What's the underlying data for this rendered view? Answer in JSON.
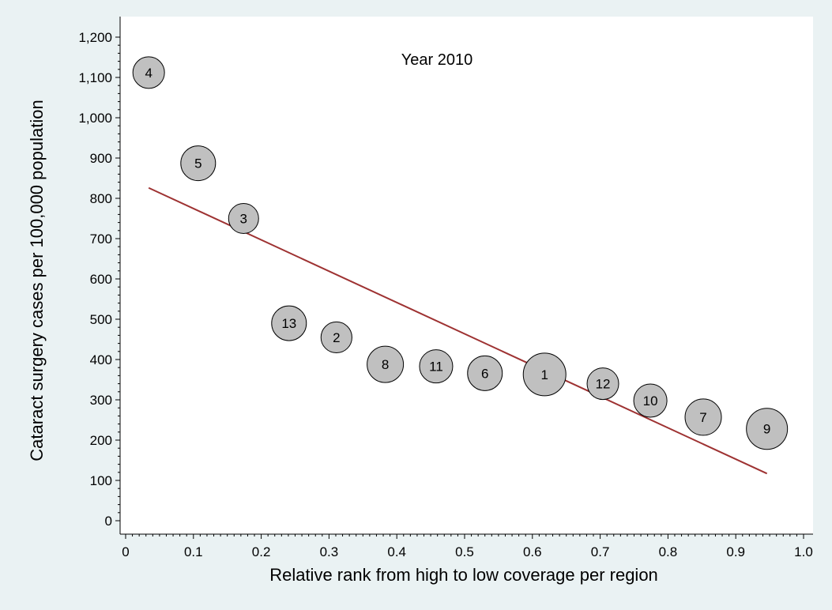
{
  "chart_data": {
    "type": "scatter",
    "annotation": "Year 2010",
    "xlabel": "Relative rank from high to low coverage per region",
    "ylabel": "Cataract surgery cases per 100,000 population",
    "xlim": [
      0,
      1.0
    ],
    "ylim": [
      0,
      1200
    ],
    "x_ticks": [
      0,
      0.1,
      0.2,
      0.3,
      0.4,
      0.5,
      0.6,
      0.7,
      0.8,
      0.9,
      1.0
    ],
    "x_tick_labels": [
      "0",
      "0.1",
      "0.2",
      "0.3",
      "0.4",
      "0.5",
      "0.6",
      "0.7",
      "0.8",
      "0.9",
      "1.0"
    ],
    "y_ticks": [
      0,
      100,
      200,
      300,
      400,
      500,
      600,
      700,
      800,
      900,
      1000,
      1100,
      1200
    ],
    "y_tick_labels": [
      "0",
      "100",
      "200",
      "300",
      "400",
      "500",
      "600",
      "700",
      "800",
      "900",
      "1,000",
      "1,100",
      "1,200"
    ],
    "x_minor_step": 0.01,
    "y_minor_step": 20,
    "grid": false,
    "colors": {
      "bubble_fill": "#c0c0c0",
      "line": "#9e3232",
      "plot_bg": "#ffffff",
      "page_bg": "#eaf2f3"
    },
    "points": [
      {
        "label": "4",
        "x": 0.034,
        "y": 1112,
        "size": 1.0
      },
      {
        "label": "5",
        "x": 0.107,
        "y": 887,
        "size": 1.1
      },
      {
        "label": "3",
        "x": 0.174,
        "y": 750,
        "size": 0.95
      },
      {
        "label": "13",
        "x": 0.241,
        "y": 490,
        "size": 1.1
      },
      {
        "label": "2",
        "x": 0.311,
        "y": 455,
        "size": 0.98
      },
      {
        "label": "8",
        "x": 0.383,
        "y": 388,
        "size": 1.15
      },
      {
        "label": "11",
        "x": 0.458,
        "y": 383,
        "size": 1.05
      },
      {
        "label": "6",
        "x": 0.53,
        "y": 366,
        "size": 1.1
      },
      {
        "label": "1",
        "x": 0.618,
        "y": 363,
        "size": 1.35
      },
      {
        "label": "12",
        "x": 0.704,
        "y": 340,
        "size": 1.0
      },
      {
        "label": "10",
        "x": 0.774,
        "y": 298,
        "size": 1.05
      },
      {
        "label": "7",
        "x": 0.852,
        "y": 257,
        "size": 1.15
      },
      {
        "label": "9",
        "x": 0.946,
        "y": 228,
        "size": 1.3
      }
    ],
    "fit_line": {
      "x": [
        0.034,
        0.946
      ],
      "y": [
        826,
        117
      ]
    }
  }
}
